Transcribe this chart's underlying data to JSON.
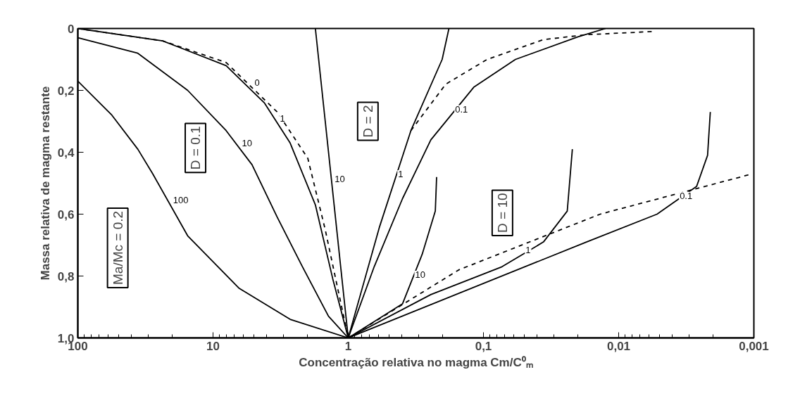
{
  "chart_data": {
    "type": "line",
    "xlabel": "Concentração relativa no magma Cm/C⁰ₘ",
    "ylabel": "Massa relativa de magma restante",
    "xlim": [
      100,
      0.001
    ],
    "ylim": [
      1.0,
      0
    ],
    "xticks": [
      100,
      10,
      1,
      {
        "value": 0.1,
        "label": "0,1"
      },
      {
        "value": 0.01,
        "label": "0,01"
      },
      {
        "value": 0.001,
        "label": "0,001"
      }
    ],
    "yticks": [
      0,
      {
        "value": 0.2,
        "label": "0,2"
      },
      {
        "value": 0.4,
        "label": "0,4"
      },
      {
        "value": 0.6,
        "label": "0,6"
      },
      {
        "value": 0.8,
        "label": "0,8"
      },
      {
        "value": 1.0,
        "label": "1,0"
      }
    ],
    "log": "x",
    "grid": false,
    "series": [
      {
        "name": "100",
        "color": "#000000",
        "x": [
          100,
          56,
          36,
          27.9,
          15.4,
          6.4,
          2.69,
          1
        ],
        "values": [
          0.17,
          0.28,
          0.39,
          0.47,
          0.67,
          0.84,
          0.94,
          1.0
        ]
      },
      {
        "name": "10",
        "color": "#000000",
        "x": [
          100,
          36,
          15.4,
          8.0,
          5.15,
          3.35,
          2.18,
          1.4,
          1
        ],
        "values": [
          0.03,
          0.08,
          0.2,
          0.33,
          0.44,
          0.61,
          0.77,
          0.93,
          1.0
        ]
      },
      {
        "name": "1",
        "color": "#000000",
        "x": [
          100,
          23.6,
          8.0,
          4.18,
          2.69,
          1.75,
          1.3,
          1
        ],
        "values": [
          0.0,
          0.04,
          0.12,
          0.24,
          0.37,
          0.57,
          0.81,
          1.0
        ]
      },
      {
        "name": "0",
        "color": "#000000",
        "line_style": "dashed",
        "x": [
          100,
          23.6,
          8.0,
          3.35,
          1.99,
          1.48,
          1
        ],
        "values": [
          0.0,
          0.04,
          0.11,
          0.27,
          0.42,
          0.65,
          1.0
        ]
      },
      {
        "name": "10",
        "color": "#000000",
        "x": [
          1,
          1.75
        ],
        "values": [
          1.0,
          0.0
        ]
      },
      {
        "name": "1",
        "color": "#000000",
        "x": [
          1,
          0.586,
          0.344,
          0.202,
          0.18
        ],
        "values": [
          1.0,
          0.64,
          0.33,
          0.1,
          0.0
        ]
      },
      {
        "color": "#000000",
        "line_style": "dashed",
        "x": [
          0.344,
          0.19,
          0.094,
          0.036,
          0.0173,
          0.0057
        ],
        "values": [
          0.33,
          0.18,
          0.1,
          0.036,
          0.02,
          0.01
        ]
      },
      {
        "name": "0.1",
        "color": "#000000",
        "x": [
          1,
          0.643,
          0.397,
          0.245,
          0.118,
          0.058,
          0.02,
          0.0125
        ],
        "values": [
          1.0,
          0.77,
          0.55,
          0.36,
          0.19,
          0.1,
          0.027,
          0.0
        ]
      },
      {
        "name": "10",
        "color": "#000000",
        "x": [
          1,
          0.397,
          0.284,
          0.227,
          0.222
        ],
        "values": [
          1.0,
          0.89,
          0.73,
          0.59,
          0.48
        ]
      },
      {
        "name": "1",
        "color": "#000000",
        "x": [
          1,
          0.245,
          0.073,
          0.036,
          0.024,
          0.022
        ],
        "values": [
          1.0,
          0.86,
          0.77,
          0.69,
          0.59,
          0.39
        ]
      },
      {
        "name": "0.1",
        "color": "#000000",
        "x": [
          1,
          0.0173,
          0.0052,
          0.00265,
          0.0022,
          0.0021
        ],
        "values": [
          1.0,
          0.69,
          0.6,
          0.51,
          0.41,
          0.27
        ]
      },
      {
        "color": "#000000",
        "line_style": "dashed",
        "x": [
          1,
          0.152,
          0.0137,
          0.00103
        ],
        "values": [
          1.0,
          0.78,
          0.6,
          0.47
        ]
      }
    ],
    "annotations": [
      "D = 0.1",
      "D = 2",
      "D = 10",
      "Ma/Mc = 0.2"
    ]
  }
}
